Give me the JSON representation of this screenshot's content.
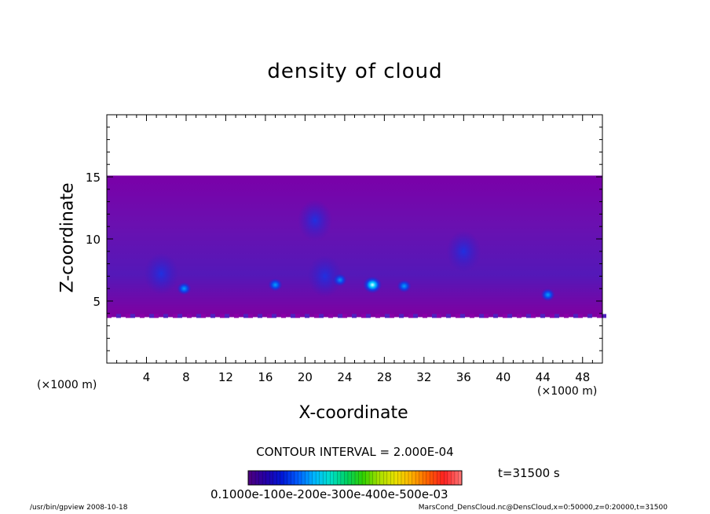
{
  "chart_data": {
    "type": "heatmap",
    "title": "density of cloud",
    "xlabel": "X-coordinate",
    "ylabel": "Z-coordinate",
    "x_unit": "(×1000 m)",
    "x_ticks": [
      "4",
      "8",
      "12",
      "16",
      "20",
      "24",
      "28",
      "32",
      "36",
      "40",
      "44",
      "48"
    ],
    "y_ticks": [
      "5",
      "10",
      "15"
    ],
    "xlim": [
      0,
      50
    ],
    "ylim": [
      0,
      20
    ],
    "cloud_layer": {
      "z_bottom": 3.7,
      "z_top": 15.1
    },
    "contour_interval": "CONTOUR INTERVAL = 2.000E-04",
    "time_label": "t=31500 s",
    "colorbar_ticks_text": "0.1000e-100e-200e-300e-400e-500e-03",
    "colorbar_colors": [
      "#4b0082",
      "#2200a8",
      "#0018d8",
      "#0060ff",
      "#00b8ff",
      "#00e0c8",
      "#00d060",
      "#30d000",
      "#a8e000",
      "#e8e000",
      "#ffb000",
      "#ff6000",
      "#ff2020",
      "#ff7070"
    ],
    "dense_spots": [
      {
        "x": 7.8,
        "z": 6.0,
        "level": 2
      },
      {
        "x": 17.0,
        "z": 6.3,
        "level": 2
      },
      {
        "x": 23.5,
        "z": 6.7,
        "level": 2
      },
      {
        "x": 26.8,
        "z": 6.3,
        "level": 3
      },
      {
        "x": 30.0,
        "z": 6.2,
        "level": 2
      },
      {
        "x": 44.5,
        "z": 5.5,
        "level": 2
      },
      {
        "x": 5.5,
        "z": 7.2,
        "level": 1
      },
      {
        "x": 22.0,
        "z": 7.0,
        "level": 1
      },
      {
        "x": 21.0,
        "z": 11.5,
        "level": 1
      },
      {
        "x": 36.0,
        "z": 9.0,
        "level": 1
      }
    ]
  },
  "footer": {
    "left": "/usr/bin/gpview   2008-10-18",
    "right": "MarsCond_DensCloud.nc@DensCloud,x=0:50000,z=0:20000,t=31500"
  }
}
